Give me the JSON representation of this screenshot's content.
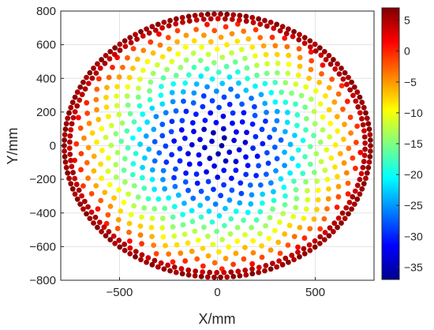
{
  "chart_data": {
    "type": "scatter",
    "title": "",
    "xlabel": "X/mm",
    "ylabel": "Y/mm",
    "xlim": [
      -800,
      800
    ],
    "ylim": [
      -800,
      800
    ],
    "xticks": [
      -500,
      0,
      500
    ],
    "yticks": [
      -800,
      -600,
      -400,
      -200,
      0,
      200,
      400,
      600,
      800
    ],
    "xtick_labels": [
      "−500",
      "0",
      "500"
    ],
    "ytick_labels": [
      "−800",
      "−600",
      "−400",
      "−200",
      "0",
      "200",
      "400",
      "600",
      "800"
    ],
    "grid": true,
    "colormap": "jet",
    "color_range": [
      -37,
      7
    ],
    "colorbar_ticks": [
      5,
      0,
      -5,
      -10,
      -15,
      -20,
      -25,
      -30,
      -35
    ],
    "colorbar_tick_labels": [
      "5",
      "0",
      "−5",
      "−10",
      "−15",
      "−20",
      "−25",
      "−30",
      "−35"
    ],
    "pattern": "sunflower",
    "point_count": 560,
    "circle_radius": 790,
    "center_value": -36,
    "edge_value": 6,
    "description_values": {
      "center": -36,
      "radius_300": -28,
      "radius_500": -15,
      "radius_650": -6,
      "radius_790": 6
    }
  }
}
